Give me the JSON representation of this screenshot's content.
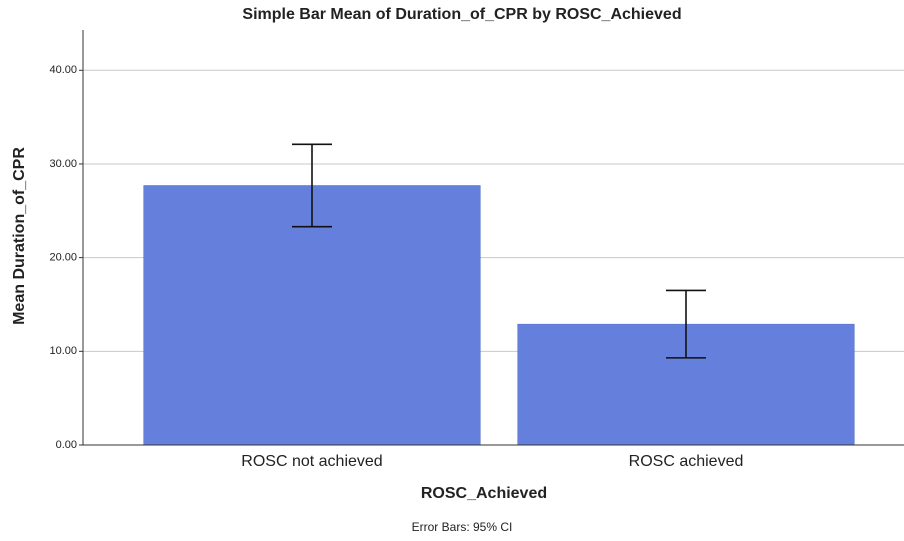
{
  "chart_data": {
    "type": "bar",
    "title": "Simple Bar Mean of Duration_of_CPR by ROSC_Achieved",
    "x_label": "ROSC_Achieved",
    "y_label": "Mean Duration_of_CPR",
    "note": "Error Bars: 95% CI",
    "categories": [
      "ROSC not achieved",
      "ROSC achieved"
    ],
    "values": [
      27.7,
      12.9
    ],
    "errors": [
      4.4,
      3.6
    ],
    "color": "#6480dc",
    "ylim": [
      0,
      44.3
    ],
    "yticks": [
      {
        "value": 0,
        "label": "0.00"
      },
      {
        "value": 10,
        "label": "10.00"
      },
      {
        "value": 20,
        "label": "20.00"
      },
      {
        "value": 30,
        "label": "30.00"
      },
      {
        "value": 40,
        "label": "40.00"
      }
    ],
    "grid": true
  }
}
